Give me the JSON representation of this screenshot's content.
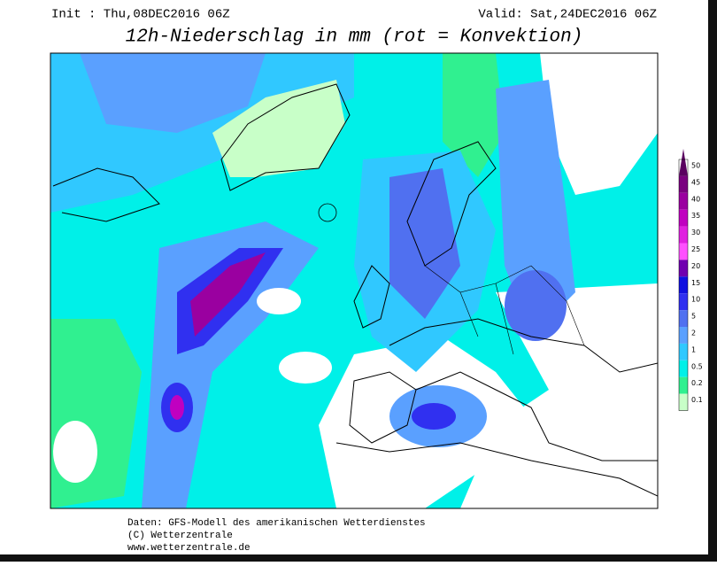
{
  "header": {
    "init": "Init : Thu,08DEC2016 06Z",
    "valid": "Valid: Sat,24DEC2016 06Z",
    "title": "12h-Niederschlag in mm (rot = Konvektion)"
  },
  "legend": [
    {
      "label": "50",
      "color": "#5a0060"
    },
    {
      "label": "45",
      "color": "#7a0080"
    },
    {
      "label": "40",
      "color": "#9a00a0"
    },
    {
      "label": "35",
      "color": "#c000c0"
    },
    {
      "label": "30",
      "color": "#e020e0"
    },
    {
      "label": "25",
      "color": "#ff50ff"
    },
    {
      "label": "20",
      "color": "#7000b0"
    },
    {
      "label": "15",
      "color": "#1010e0"
    },
    {
      "label": "10",
      "color": "#3030f0"
    },
    {
      "label": "5",
      "color": "#5070f0"
    },
    {
      "label": "2",
      "color": "#5aa0ff"
    },
    {
      "label": "1",
      "color": "#30c8ff"
    },
    {
      "label": "0.5",
      "color": "#00f0e8"
    },
    {
      "label": "0.2",
      "color": "#30f090"
    },
    {
      "label": "0.1",
      "color": "#c8ffc8"
    }
  ],
  "footer": [
    "Daten: GFS-Modell des amerikanischen Wetterdienstes",
    "(C) Wetterzentrale",
    "www.wetterzentrale.de"
  ]
}
